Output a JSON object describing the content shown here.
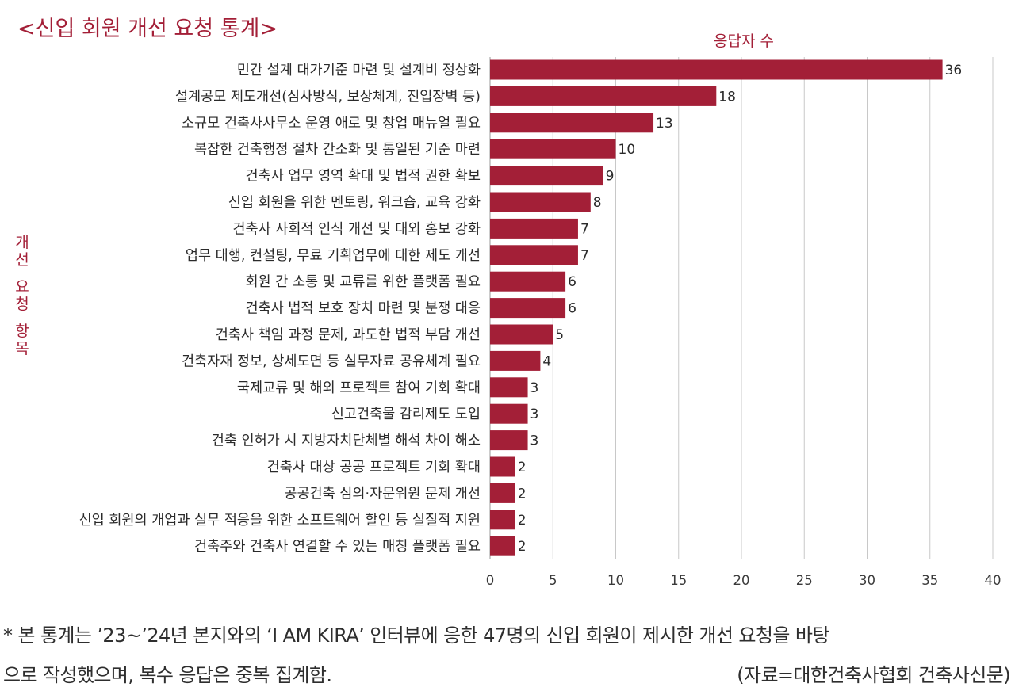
{
  "chart_data": {
    "type": "bar",
    "orientation": "horizontal",
    "title": "<신입 회원 개선 요청 통계>",
    "xlabel": "응답자 수",
    "ylabel": "개선 요청 항목",
    "xlim": [
      0,
      40
    ],
    "xticks": [
      0,
      5,
      10,
      15,
      20,
      25,
      30,
      35,
      40
    ],
    "grid": "vertical",
    "bar_color": "#a31f37",
    "categories": [
      "민간 설계 대가기준 마련 및 설계비 정상화",
      "설계공모 제도개선(심사방식, 보상체계, 진입장벽 등)",
      "소규모 건축사사무소 운영 애로 및 창업 매뉴얼 필요",
      "복잡한 건축행정 절차 간소화 및 통일된 기준 마련",
      "건축사 업무 영역 확대 및 법적 권한 확보",
      "신입 회원을 위한 멘토링, 워크숍, 교육 강화",
      "건축사 사회적 인식 개선 및 대외 홍보 강화",
      "업무 대행, 컨설팅, 무료 기획업무에 대한 제도 개선",
      "회원 간 소통 및 교류를 위한 플랫폼 필요",
      "건축사 법적 보호 장치 마련 및 분쟁 대응",
      "건축사 책임 과정 문제, 과도한 법적 부담 개선",
      "건축자재 정보, 상세도면 등 실무자료 공유체계 필요",
      "국제교류 및 해외 프로젝트 참여 기회 확대",
      "신고건축물 감리제도 도입",
      "건축 인허가 시 지방자치단체별 해석 차이 해소",
      "건축사 대상 공공 프로젝트 기회 확대",
      "공공건축 심의·자문위원 문제 개선",
      "신입 회원의 개업과 실무 적응을 위한 소프트웨어 할인 등 실질적 지원",
      "건축주와 건축사 연결할 수 있는 매칭 플랫폼 필요"
    ],
    "values": [
      36,
      18,
      13,
      10,
      9,
      8,
      7,
      7,
      6,
      6,
      5,
      4,
      3,
      3,
      3,
      2,
      2,
      2,
      2
    ]
  },
  "footnote": {
    "line1": "* 본 통계는 ’23~’24년 본지와의 ‘I AM KIRA’ 인터뷰에 응한 47명의 신입 회원이 제시한 개선 요청을 바탕",
    "line2": "으로 작성했으며, 복수 응답은 중복 집계함.",
    "source": "(자료=대한건축사협회 건축사신문)"
  }
}
